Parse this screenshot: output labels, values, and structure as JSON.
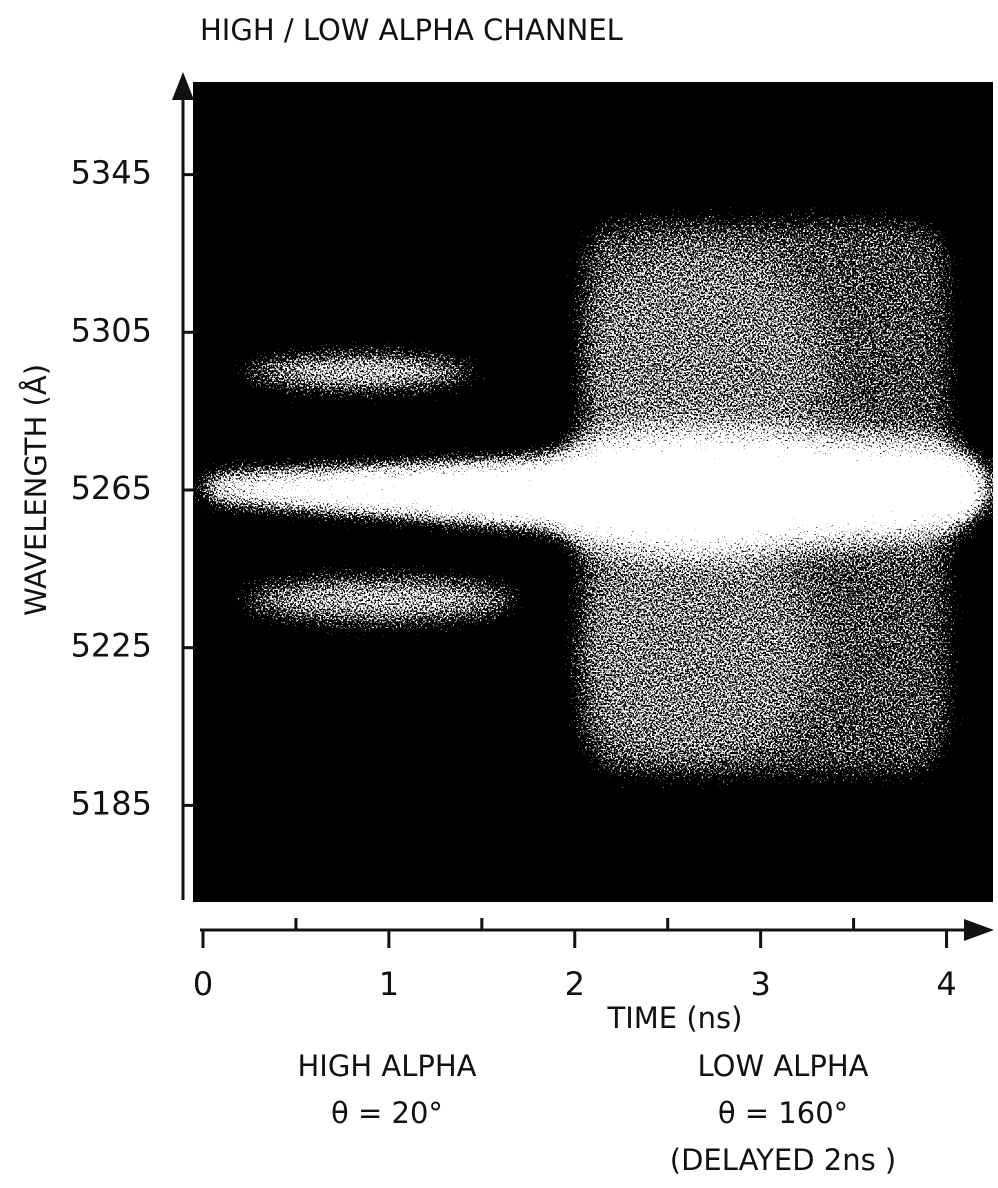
{
  "chart_data": {
    "type": "image",
    "title": "HIGH / LOW ALPHA CHANNEL",
    "xlabel": "TIME (ns)",
    "ylabel": "WAVELENGTH (Å)",
    "xlim": [
      0,
      4.25
    ],
    "xticks": [
      0,
      1,
      2,
      3,
      4
    ],
    "xminorticks": [
      0.5,
      1.5,
      2.5,
      3.5
    ],
    "ylim": [
      5161,
      5369
    ],
    "yticks": [
      5185,
      5225,
      5265,
      5305,
      5345
    ],
    "annotations": [
      {
        "lines": [
          "HIGH ALPHA",
          "θ = 20°"
        ]
      },
      {
        "lines": [
          "LOW ALPHA",
          "θ = 160°",
          "(DELAYED 2ns )"
        ]
      }
    ]
  }
}
